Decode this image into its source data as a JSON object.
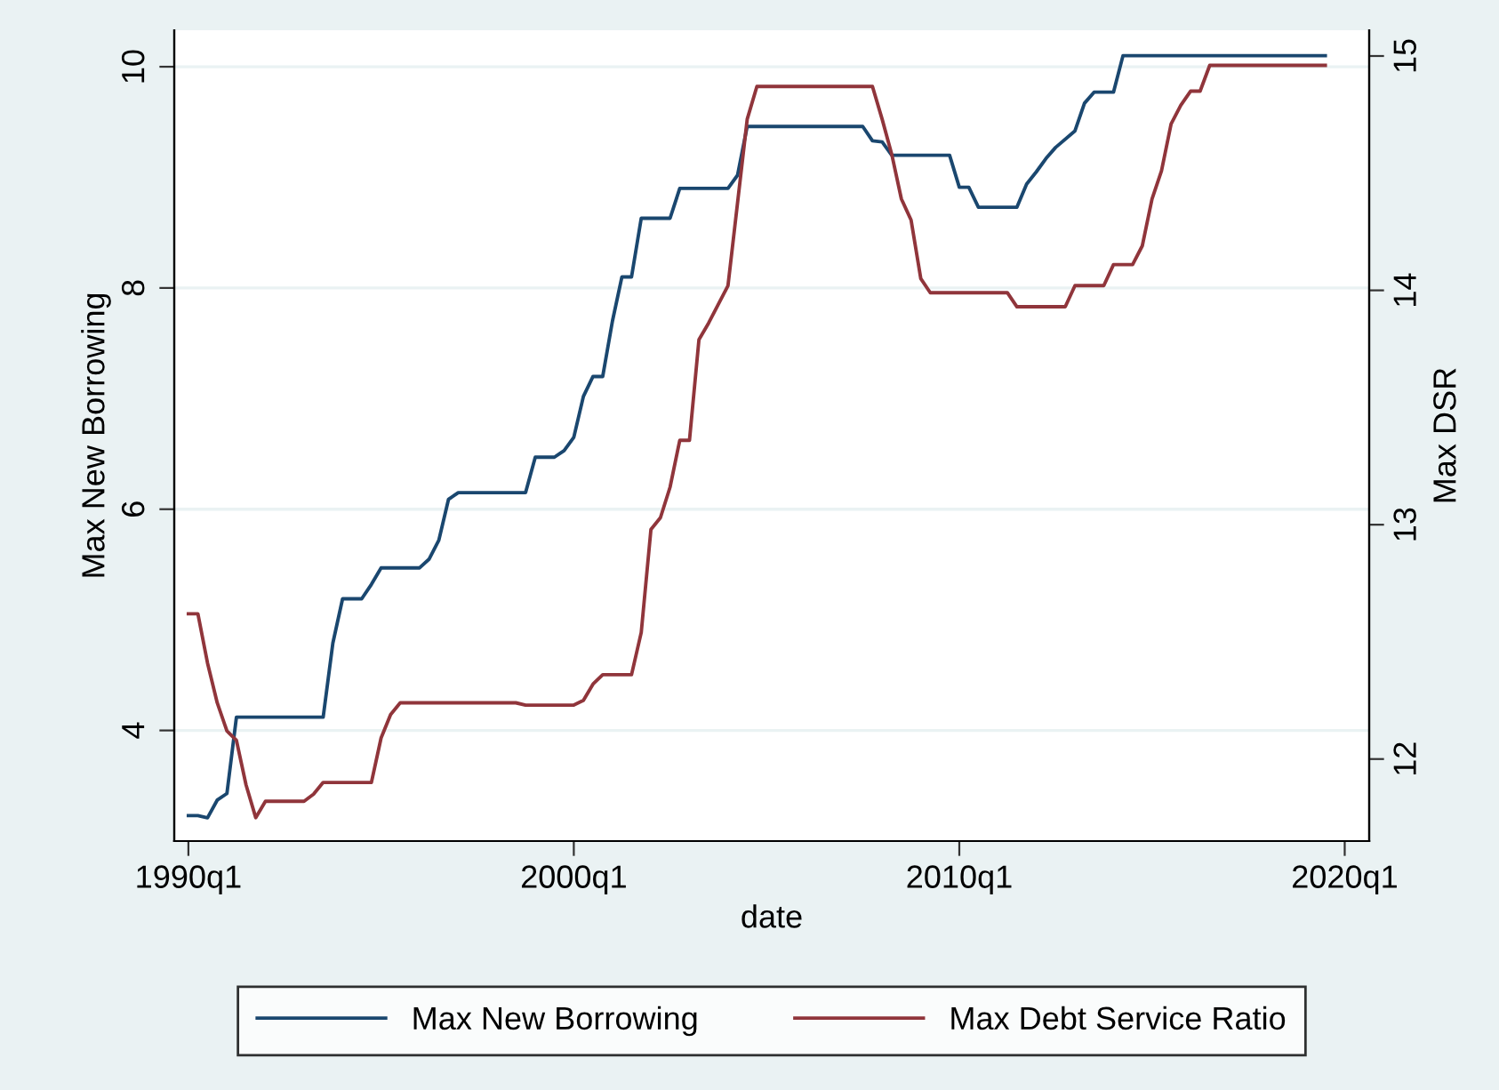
{
  "chart_data": {
    "type": "line",
    "xlabel": "date",
    "ylabel": "Max New Borrowing",
    "y2label": "Max DSR",
    "xlim": [
      "1989-08-20",
      "2020-08-20"
    ],
    "xticks": [
      {
        "value": "1990-01",
        "label": "1990q1"
      },
      {
        "value": "2000-01",
        "label": "2000q1"
      },
      {
        "value": "2010-01",
        "label": "2010q1"
      },
      {
        "value": "2020-01",
        "label": "2020q1"
      }
    ],
    "ylim": [
      3.0,
      10.33
    ],
    "yticks": [
      4,
      6,
      8,
      10
    ],
    "y2lim": [
      11.65,
      15.11
    ],
    "y2ticks": [
      12,
      13,
      14,
      15
    ],
    "grid": "y",
    "legend": "bottom",
    "marker": "none",
    "line_style": "solid",
    "series": [
      {
        "name": "Max New Borrowing",
        "color": "#1a476f",
        "x": [
          "1990-01",
          "1990-04",
          "1990-07",
          "1990-10",
          "1991-01",
          "1991-04",
          "1993-07",
          "1993-10",
          "1994-01",
          "1994-07",
          "1994-10",
          "1995-01",
          "1996-01",
          "1996-04",
          "1996-07",
          "1996-10",
          "1997-01",
          "1998-10",
          "1999-01",
          "1999-07",
          "1999-10",
          "2000-01",
          "2000-04",
          "2000-07",
          "2000-10",
          "2001-01",
          "2001-04",
          "2001-07",
          "2001-10",
          "2002-07",
          "2002-10",
          "2004-01",
          "2004-04",
          "2004-07",
          "2007-07",
          "2007-10",
          "2008-01",
          "2008-04",
          "2009-10",
          "2010-01",
          "2010-04",
          "2010-07",
          "2011-07",
          "2011-10",
          "2012-01",
          "2012-04",
          "2012-07",
          "2013-01",
          "2013-04",
          "2013-07",
          "2014-01",
          "2014-04",
          "2019-07"
        ],
        "values": [
          3.23,
          3.23,
          3.21,
          3.37,
          3.43,
          4.12,
          4.12,
          4.79,
          5.19,
          5.19,
          5.32,
          5.47,
          5.47,
          5.55,
          5.72,
          6.09,
          6.15,
          6.15,
          6.47,
          6.47,
          6.53,
          6.65,
          7.02,
          7.2,
          7.2,
          7.7,
          8.1,
          8.1,
          8.63,
          8.63,
          8.9,
          8.9,
          9.02,
          9.46,
          9.46,
          9.33,
          9.32,
          9.2,
          9.2,
          8.91,
          8.91,
          8.73,
          8.73,
          8.94,
          9.05,
          9.17,
          9.27,
          9.42,
          9.67,
          9.77,
          9.77,
          10.1,
          10.1
        ]
      },
      {
        "name": "Max Debt Service Ratio",
        "color": "#90353b",
        "axis": "y2",
        "x": [
          "1990-01",
          "1990-04",
          "1990-07",
          "1990-10",
          "1991-01",
          "1991-04",
          "1991-07",
          "1991-10",
          "1992-01",
          "1993-01",
          "1993-04",
          "1993-07",
          "1994-10",
          "1995-01",
          "1995-04",
          "1995-07",
          "1998-07",
          "1998-10",
          "2000-01",
          "2000-04",
          "2000-07",
          "2000-10",
          "2001-07",
          "2001-10",
          "2002-01",
          "2002-04",
          "2002-07",
          "2002-10",
          "2003-01",
          "2003-04",
          "2003-07",
          "2003-10",
          "2004-01",
          "2004-07",
          "2004-10",
          "2007-10",
          "2008-01",
          "2008-04",
          "2008-07",
          "2008-10",
          "2009-01",
          "2009-04",
          "2011-04",
          "2011-07",
          "2012-10",
          "2013-01",
          "2013-10",
          "2014-01",
          "2014-07",
          "2014-10",
          "2015-01",
          "2015-04",
          "2015-07",
          "2015-10",
          "2016-01",
          "2016-04",
          "2016-07",
          "2019-07"
        ],
        "values": [
          12.62,
          12.62,
          12.41,
          12.24,
          12.12,
          12.08,
          11.89,
          11.75,
          11.82,
          11.82,
          11.85,
          11.9,
          11.9,
          12.09,
          12.19,
          12.24,
          12.24,
          12.23,
          12.23,
          12.25,
          12.32,
          12.36,
          12.36,
          12.54,
          12.98,
          13.03,
          13.16,
          13.36,
          13.36,
          13.79,
          13.86,
          13.94,
          14.02,
          14.73,
          14.87,
          14.87,
          14.73,
          14.58,
          14.39,
          14.3,
          14.05,
          13.99,
          13.99,
          13.93,
          13.93,
          14.02,
          14.02,
          14.11,
          14.11,
          14.19,
          14.39,
          14.51,
          14.71,
          14.79,
          14.85,
          14.85,
          14.96,
          14.96
        ]
      }
    ]
  }
}
